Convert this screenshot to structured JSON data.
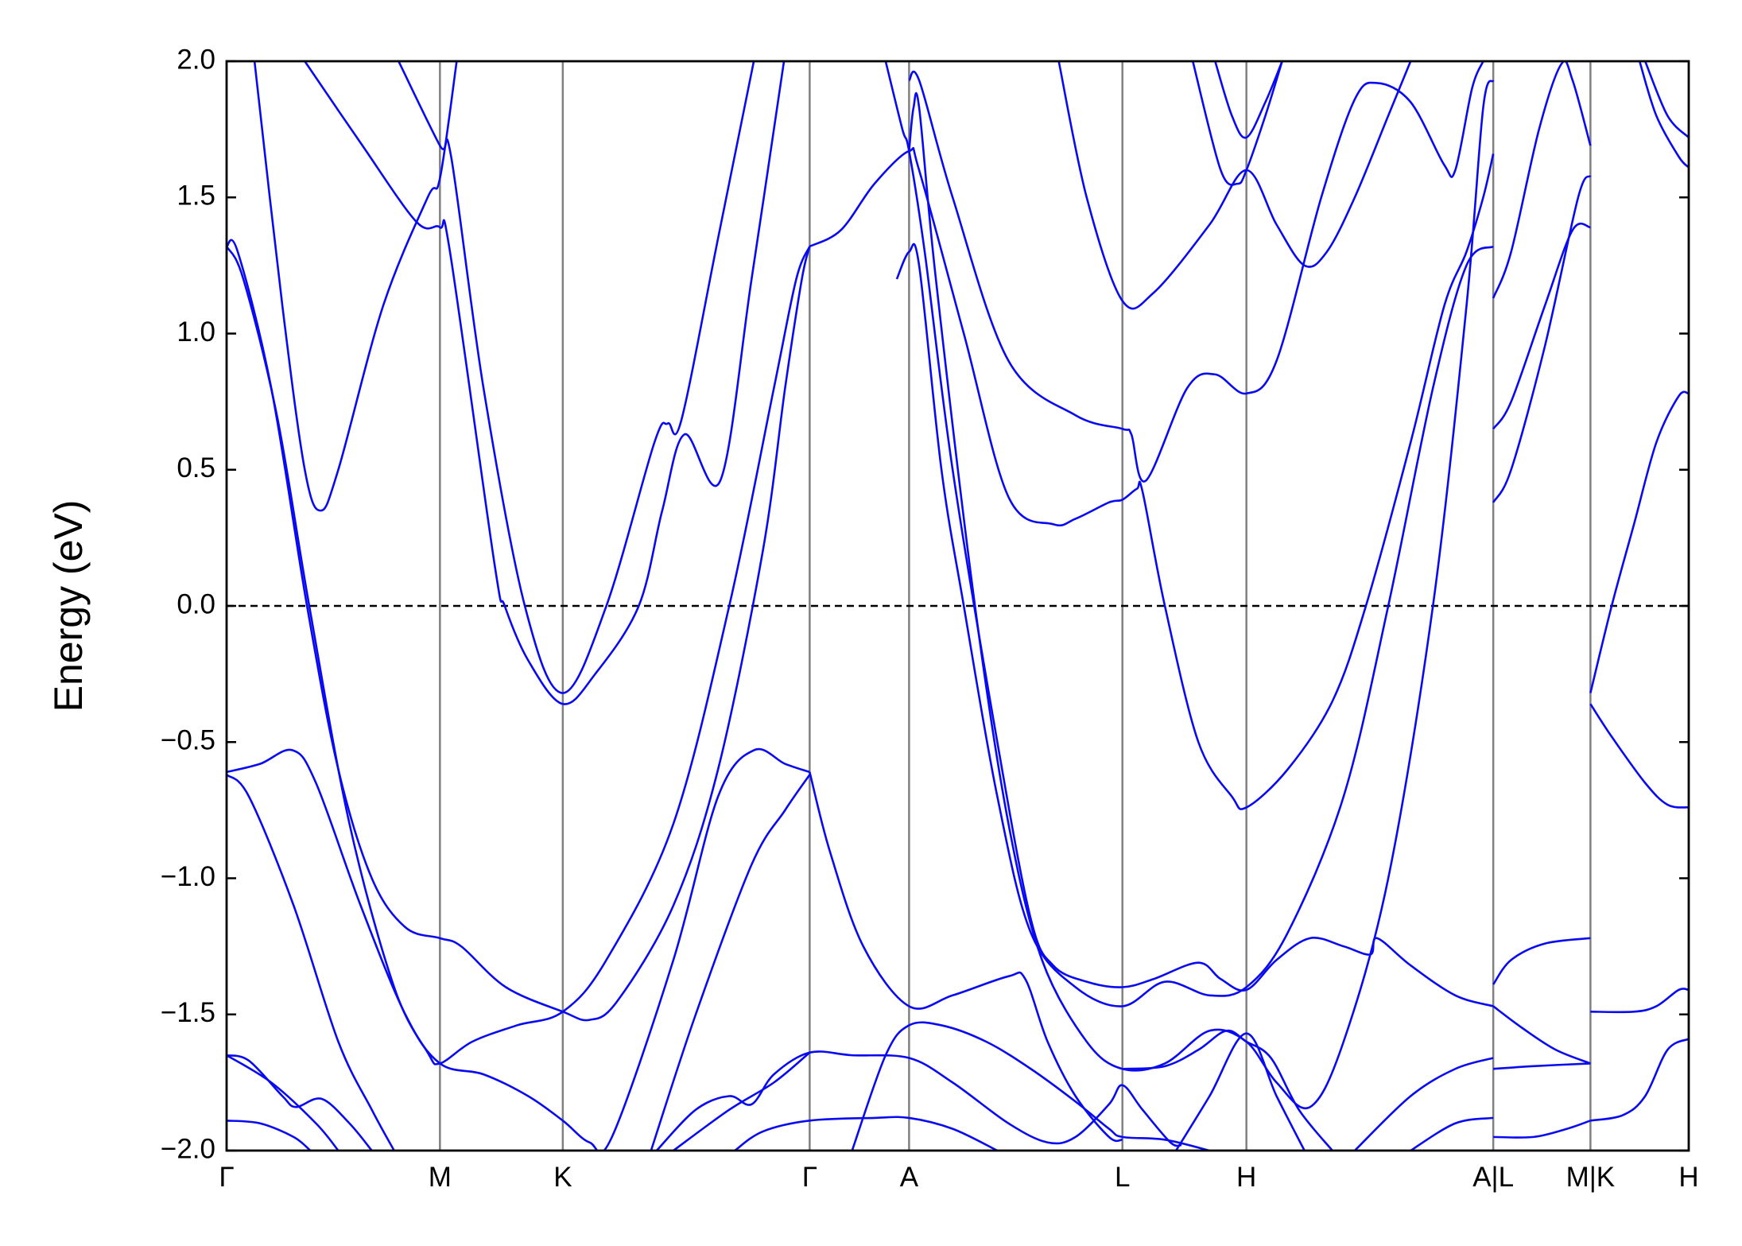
{
  "chart_data": {
    "type": "line",
    "ylabel": "Energy (eV)",
    "color": "#0a0af0",
    "xlim": [
      0,
      1309
    ],
    "ylim": [
      -2,
      2
    ],
    "yticks": [
      {
        "value": -2,
        "label": "−2.0"
      },
      {
        "value": -1.5,
        "label": "−1.5"
      },
      {
        "value": -1,
        "label": "−1.0"
      },
      {
        "value": -0.5,
        "label": "−0.5"
      },
      {
        "value": 0,
        "label": "0.0"
      },
      {
        "value": 0.5,
        "label": "0.5"
      },
      {
        "value": 1,
        "label": "1.0"
      },
      {
        "value": 1.5,
        "label": "1.5"
      },
      {
        "value": 2,
        "label": "2.0"
      }
    ],
    "xticks": [
      {
        "value": 0,
        "label": "Γ"
      },
      {
        "value": 191,
        "label": "M"
      },
      {
        "value": 301,
        "label": "K"
      },
      {
        "value": 522,
        "label": "Γ"
      },
      {
        "value": 611,
        "label": "A"
      },
      {
        "value": 802,
        "label": "L"
      },
      {
        "value": 913,
        "label": "H"
      },
      {
        "value": 1134,
        "label": "A|L"
      },
      {
        "value": 1221,
        "label": "M|K"
      },
      {
        "value": 1309,
        "label": "H"
      }
    ],
    "hlines": [
      0
    ],
    "series": [
      {
        "x": [
          25,
          50,
          70,
          84,
          100,
          140,
          180,
          191,
          206
        ],
        "values": [
          2.0,
          1.1,
          0.5,
          0.35,
          0.5,
          1.1,
          1.5,
          1.57,
          2.0
        ]
      },
      {
        "x": [
          70,
          120,
          170,
          191,
          200,
          240,
          249,
          270,
          301,
          330,
          369,
          390,
          410,
          442,
          470,
          499
        ],
        "values": [
          2.0,
          1.7,
          1.41,
          1.39,
          1.3,
          0.15,
          0,
          -0.2,
          -0.36,
          -0.25,
          0,
          0.35,
          0.63,
          0.46,
          1.2,
          2.0
        ]
      },
      {
        "x": [
          154,
          191,
          201,
          230,
          267,
          301,
          340,
          383,
          395,
          407,
          440,
          472
        ],
        "values": [
          2.0,
          1.69,
          1.65,
          0.8,
          0,
          -0.32,
          0,
          0.6,
          0.67,
          0.68,
          1.35,
          2.0
        ]
      },
      {
        "x": [
          0,
          10,
          40,
          72,
          100,
          130,
          160,
          191,
          210,
          250,
          301,
          325,
          350,
          400,
          440,
          480,
          500,
          515,
          522
        ],
        "values": [
          1.32,
          1.3,
          0.8,
          0,
          -0.6,
          -1.0,
          -1.18,
          -1.22,
          -1.25,
          -1.4,
          -1.49,
          -1.52,
          -1.45,
          -1.1,
          -0.6,
          0.2,
          0.8,
          1.2,
          1.32
        ]
      },
      {
        "x": [
          0,
          15,
          45,
          74,
          110,
          150,
          180,
          191,
          220,
          260,
          301,
          340,
          400,
          450,
          490,
          510,
          522
        ],
        "values": [
          1.32,
          1.2,
          0.7,
          0,
          -0.8,
          -1.4,
          -1.64,
          -1.68,
          -1.6,
          -1.54,
          -1.49,
          -1.3,
          -0.8,
          0,
          0.8,
          1.2,
          1.32
        ]
      },
      {
        "x": [
          0,
          30,
          59,
          80,
          120,
          160,
          191,
          230,
          270,
          301,
          325,
          345,
          400,
          440,
          472,
          500,
          522
        ],
        "values": [
          -0.61,
          -0.58,
          -0.53,
          -0.65,
          -1.1,
          -1.5,
          -1.68,
          -1.72,
          -1.8,
          -1.89,
          -1.97,
          -1.95,
          -1.3,
          -0.7,
          -0.53,
          -0.58,
          -0.61
        ]
      },
      {
        "x": [
          0,
          20,
          60,
          100,
          130,
          150
        ],
        "values": [
          -0.62,
          -0.7,
          -1.1,
          -1.6,
          -1.85,
          -2.0
        ]
      },
      {
        "x": [
          380,
          420,
          470,
          500,
          522
        ],
        "values": [
          -2.0,
          -1.5,
          -0.95,
          -0.75,
          -0.62
        ]
      },
      {
        "x": [
          0,
          20,
          50,
          62,
          85,
          110,
          130
        ],
        "values": [
          -1.65,
          -1.67,
          -1.8,
          -1.84,
          -1.81,
          -1.9,
          -2.0
        ]
      },
      {
        "x": [
          0,
          40,
          80,
          100
        ],
        "values": [
          -1.65,
          -1.75,
          -1.9,
          -2.0
        ]
      },
      {
        "x": [
          0,
          30,
          60,
          75
        ],
        "values": [
          -1.89,
          -1.9,
          -1.95,
          -2.0
        ]
      },
      {
        "x": [
          385,
          420,
          450,
          470,
          490,
          522,
          560,
          611,
          650,
          700,
          735,
          760,
          790,
          802,
          820,
          845,
          855
        ],
        "values": [
          -2.0,
          -1.85,
          -1.8,
          -1.83,
          -1.72,
          -1.64,
          -1.65,
          -1.66,
          -1.75,
          -1.9,
          -1.97,
          -1.95,
          -1.83,
          -1.76,
          -1.85,
          -1.97,
          -1.98
        ]
      },
      {
        "x": [
          400,
          450,
          490,
          522
        ],
        "values": [
          -2.0,
          -1.85,
          -1.75,
          -1.64
        ]
      },
      {
        "x": [
          455,
          480,
          522,
          580,
          611,
          650,
          690
        ],
        "values": [
          -2.0,
          -1.93,
          -1.89,
          -1.88,
          -1.88,
          -1.92,
          -2.0
        ]
      },
      {
        "x": [
          522,
          550,
          580,
          611,
          620,
          660,
          700,
          740,
          760,
          790,
          802,
          815,
          820,
          840,
          870,
          900,
          913,
          950,
          990,
          1020,
          1060,
          1090,
          1110,
          1125,
          1134
        ],
        "values": [
          1.32,
          1.38,
          1.55,
          1.67,
          1.6,
          1.0,
          0.4,
          0.3,
          0.32,
          0.38,
          0.39,
          0.43,
          0.42,
          0,
          -0.5,
          -0.7,
          -0.74,
          -0.6,
          -0.35,
          0,
          0.6,
          1.1,
          1.3,
          1.5,
          1.66
        ]
      },
      {
        "x": [
          522,
          540,
          570,
          611,
          650,
          700,
          715,
          735,
          760,
          790,
          802
        ],
        "values": [
          -0.61,
          -0.9,
          -1.25,
          -1.47,
          -1.43,
          -1.36,
          -1.37,
          -1.6,
          -1.8,
          -1.95,
          -1.96
        ]
      },
      {
        "x": [
          590,
          605,
          611,
          625,
          650,
          690,
          720,
          740,
          770,
          802,
          830,
          870,
          890,
          913,
          940,
          970,
          1000,
          1024,
          1030,
          1060,
          1100,
          1134
        ],
        "values": [
          2.0,
          1.75,
          1.67,
          1.3,
          0.5,
          -0.5,
          -1.15,
          -1.32,
          -1.38,
          -1.4,
          -1.37,
          -1.31,
          -1.37,
          -1.41,
          -1.3,
          -1.22,
          -1.25,
          -1.28,
          -1.22,
          -1.32,
          -1.43,
          -1.47
        ]
      },
      {
        "x": [
          600,
          611,
          620,
          640,
          660,
          690,
          720,
          760,
          802,
          840,
          880,
          913,
          950,
          1000,
          1040,
          1080,
          1110,
          1134
        ],
        "values": [
          1.2,
          1.3,
          1.25,
          0.5,
          0,
          -0.7,
          -1.2,
          -1.4,
          -1.47,
          -1.38,
          -1.43,
          -1.4,
          -1.2,
          -0.7,
          0,
          0.8,
          1.25,
          1.32
        ]
      },
      {
        "x": [
          611,
          615,
          620,
          635,
          670,
          700,
          730,
          770,
          802,
          840,
          880,
          913,
          940,
          970,
          1000,
          1040,
          1080,
          1110,
          1125,
          1134
        ],
        "values": [
          1.67,
          1.83,
          1.83,
          1.2,
          0,
          -0.8,
          -1.3,
          -1.6,
          -1.7,
          -1.68,
          -1.56,
          -1.6,
          -1.75,
          -1.84,
          -1.6,
          -1.0,
          0,
          1.1,
          1.83,
          1.93
        ]
      },
      {
        "x": [
          611,
          620,
          650,
          700,
          760,
          802,
          810,
          823,
          860,
          885,
          913,
          940,
          980,
          1010,
          1030,
          1060,
          1090,
          1100,
          1115,
          1125
        ],
        "values": [
          1.93,
          1.93,
          1.5,
          0.9,
          0.7,
          0.65,
          0.63,
          0.46,
          0.8,
          0.85,
          0.78,
          0.9,
          1.5,
          1.86,
          1.92,
          1.85,
          1.62,
          1.6,
          1.9,
          2.0
        ]
      },
      {
        "x": [
          745,
          770,
          802,
          830,
          880,
          913,
          940,
          965,
          985,
          1010,
          1040,
          1060
        ],
        "values": [
          2.0,
          1.5,
          1.12,
          1.15,
          1.4,
          1.6,
          1.4,
          1.25,
          1.3,
          1.5,
          1.8,
          2.0
        ]
      },
      {
        "x": [
          865,
          890,
          905,
          913,
          930,
          945
        ],
        "values": [
          2.0,
          1.6,
          1.55,
          1.6,
          1.8,
          2.0
        ]
      },
      {
        "x": [
          885,
          900,
          913,
          930,
          945
        ],
        "values": [
          2.0,
          1.8,
          1.72,
          1.85,
          2.0
        ]
      },
      {
        "x": [
          560,
          590,
          611,
          640,
          680,
          720,
          760,
          790,
          802,
          840,
          880
        ],
        "values": [
          -2.0,
          -1.65,
          -1.54,
          -1.54,
          -1.6,
          -1.7,
          -1.82,
          -1.92,
          -1.95,
          -1.96,
          -2.0
        ]
      },
      {
        "x": [
          802,
          840,
          870,
          895,
          913,
          935,
          960,
          990
        ],
        "values": [
          -1.7,
          -1.69,
          -1.63,
          -1.56,
          -1.6,
          -1.66,
          -1.85,
          -2.0
        ]
      },
      {
        "x": [
          850,
          880,
          913,
          940,
          965
        ],
        "values": [
          -2.0,
          -1.8,
          -1.57,
          -1.8,
          -2.0
        ]
      },
      {
        "x": [
          1010,
          1060,
          1100,
          1134
        ],
        "values": [
          -2.0,
          -1.8,
          -1.7,
          -1.66
        ]
      },
      {
        "x": [
          1060,
          1100,
          1134
        ],
        "values": [
          -2.0,
          -1.9,
          -1.88
        ]
      },
      {
        "x": [
          1134,
          1150,
          1175,
          1195,
          1205,
          1221
        ],
        "values": [
          1.13,
          1.3,
          1.75,
          1.99,
          1.93,
          1.69
        ]
      },
      {
        "x": [
          1134,
          1150,
          1180,
          1205,
          1221
        ],
        "values": [
          0.65,
          0.75,
          1.1,
          1.38,
          1.39
        ]
      },
      {
        "x": [
          1134,
          1150,
          1180,
          1210,
          1221
        ],
        "values": [
          0.38,
          0.5,
          0.95,
          1.5,
          1.58
        ]
      },
      {
        "x": [
          1134,
          1150,
          1180,
          1221
        ],
        "values": [
          -1.39,
          -1.3,
          -1.24,
          -1.22
        ]
      },
      {
        "x": [
          1134,
          1160,
          1190,
          1221
        ],
        "values": [
          -1.47,
          -1.55,
          -1.63,
          -1.68
        ]
      },
      {
        "x": [
          1134,
          1170,
          1221
        ],
        "values": [
          -1.7,
          -1.69,
          -1.68
        ]
      },
      {
        "x": [
          1134,
          1170,
          1200,
          1221
        ],
        "values": [
          -1.95,
          -1.95,
          -1.92,
          -1.89
        ]
      },
      {
        "x": [
          1221,
          1240,
          1260,
          1280,
          1300,
          1309
        ],
        "values": [
          -0.32,
          0,
          0.3,
          0.6,
          0.77,
          0.78
        ]
      },
      {
        "x": [
          1221,
          1240,
          1270,
          1290,
          1309
        ],
        "values": [
          -0.36,
          -0.48,
          -0.65,
          -0.73,
          -0.74
        ]
      },
      {
        "x": [
          1221,
          1260,
          1280,
          1300,
          1309
        ],
        "values": [
          -1.49,
          -1.49,
          -1.47,
          -1.41,
          -1.41
        ]
      },
      {
        "x": [
          1221,
          1250,
          1270,
          1290,
          1309
        ],
        "values": [
          -1.89,
          -1.87,
          -1.8,
          -1.63,
          -1.59
        ]
      },
      {
        "x": [
          1265,
          1280,
          1300,
          1309
        ],
        "values": [
          2.0,
          1.8,
          1.65,
          1.61
        ]
      },
      {
        "x": [
          1270,
          1290,
          1309
        ],
        "values": [
          2.0,
          1.8,
          1.72
        ]
      }
    ]
  }
}
